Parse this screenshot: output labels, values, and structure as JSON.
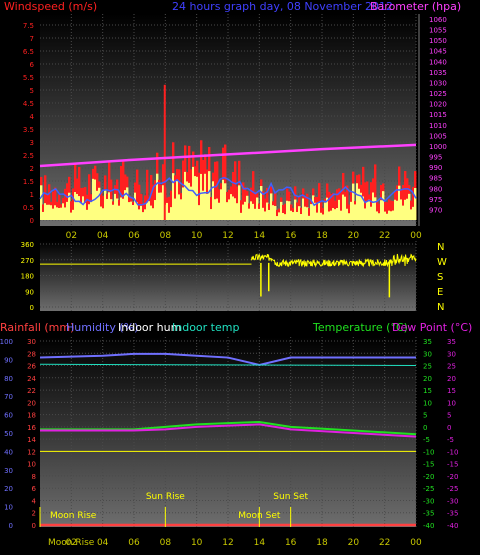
{
  "colors": {
    "wind": "#ff2020",
    "gust_fill": "#ffff80",
    "avg_wind": "#4060ff",
    "barometer": "#ff40ff",
    "direction": "#ffff00",
    "hours": "#c8c800",
    "rain": "#ff4040",
    "humidity": "#7070ff",
    "indoor_hum": "#ffffff",
    "indoor_temp": "#20e0c0",
    "temperature": "#20e020",
    "dew_point": "#e020e0",
    "title": "#4040ff"
  },
  "header": {
    "windspeed_label": "Windspeed (m/s)",
    "title": "24 hours graph day, 08 November 2012",
    "barometer_label": "Barometer (hpa)"
  },
  "x_ticks": [
    "02",
    "04",
    "06",
    "08",
    "10",
    "12",
    "14",
    "16",
    "18",
    "20",
    "22",
    "00"
  ],
  "x_ticks_bottom": [
    "02",
    "04",
    "06",
    "08",
    "10",
    "12",
    "14",
    "16",
    "18",
    "20",
    "22",
    "00"
  ],
  "compass_labels": [
    "N",
    "W",
    "S",
    "E",
    "N"
  ],
  "bottom_legend": {
    "rainfall": "Rainfall (mm)",
    "humidity": "Humidity (%)",
    "indoor_hum": "Indoor hum",
    "indoor_temp": "Indoor temp",
    "temperature": "Temperature (°C)",
    "dew_point": "Dew Point (°C)"
  },
  "events": [
    {
      "label": "Moon Rise",
      "hour": 0.0
    },
    {
      "label": "Sun Rise",
      "hour": 8.0
    },
    {
      "label": "Moon Set",
      "hour": 14.0
    },
    {
      "label": "Sun Set",
      "hour": 16.0
    }
  ],
  "bottom_axis_extra": "Moon Rise",
  "chart_data": [
    {
      "type": "bar",
      "name": "Windspeed",
      "x_range_hours": [
        0,
        24
      ],
      "ylim": [
        0,
        7.5
      ],
      "yticks": [
        "0",
        "0.5",
        "1",
        "1.5",
        "2",
        "2.5",
        "3",
        "3.5",
        "4",
        "4.5",
        "5",
        "5.5",
        "6",
        "6.5",
        "7",
        "7.5"
      ],
      "peak_gust": 5.2,
      "typical_max": 2.5,
      "average_wind_approx": 0.9
    },
    {
      "type": "line",
      "name": "Barometer",
      "ylim": [
        965,
        1060
      ],
      "yticks": [
        "970",
        "975",
        "980",
        "985",
        "990",
        "995",
        "1000",
        "1005",
        "1010",
        "1015",
        "1020",
        "1025",
        "1030",
        "1035",
        "1040",
        "1045",
        "1050",
        "1055",
        "1060"
      ],
      "x": [
        0,
        6,
        12,
        18,
        24
      ],
      "values": [
        990.5,
        993.5,
        996.0,
        998.5,
        1000.5
      ]
    },
    {
      "type": "scatter",
      "name": "Wind direction",
      "ylim": [
        0,
        360
      ],
      "yticks": [
        "0",
        "90",
        "180",
        "270",
        "360"
      ],
      "start_hour": 13.5,
      "mean_direction": 252,
      "before_hour_value": 245
    },
    {
      "type": "line",
      "name": "Humidity / Temperature",
      "left_axis_rain_ylim": [
        0,
        30
      ],
      "left_rain_ticks": [
        "0",
        "2",
        "4",
        "6",
        "8",
        "10",
        "12",
        "14",
        "16",
        "18",
        "20",
        "22",
        "24",
        "26",
        "28",
        "30"
      ],
      "left_hum_ticks": [
        "0",
        "10",
        "20",
        "30",
        "40",
        "50",
        "60",
        "70",
        "80",
        "90",
        "100"
      ],
      "right_temp_ylim": [
        -40,
        35
      ],
      "right_temp_ticks": [
        "35",
        "30",
        "25",
        "20",
        "15",
        "10",
        "5",
        "0",
        "-5",
        "-10",
        "-15",
        "-20",
        "-25",
        "-30",
        "-35",
        "-40"
      ],
      "series": [
        {
          "name": "Humidity",
          "x": [
            0,
            4,
            6,
            8,
            10,
            12,
            14,
            16,
            20,
            24
          ],
          "values": [
            91,
            92,
            93,
            93,
            92,
            91,
            87,
            91,
            91,
            91
          ]
        },
        {
          "name": "Indoor hum",
          "x": [
            0,
            24
          ],
          "values": [
            40,
            40
          ]
        },
        {
          "name": "Indoor temp",
          "x": [
            0,
            24
          ],
          "values": [
            25.5,
            25.0
          ]
        },
        {
          "name": "Temperature",
          "x": [
            0,
            4,
            6,
            8,
            10,
            12,
            14,
            16,
            20,
            24
          ],
          "values": [
            -1,
            -1,
            -1,
            0,
            1,
            1.5,
            2,
            0,
            -1.5,
            -3
          ]
        },
        {
          "name": "Dew Point",
          "x": [
            0,
            4,
            6,
            8,
            10,
            12,
            14,
            16,
            20,
            24
          ],
          "values": [
            -1.5,
            -1.5,
            -1.5,
            -1,
            0,
            0.5,
            1,
            -1,
            -2.5,
            -4
          ]
        },
        {
          "name": "Rainfall",
          "x": [
            0,
            24
          ],
          "values": [
            0,
            0
          ]
        }
      ]
    }
  ]
}
